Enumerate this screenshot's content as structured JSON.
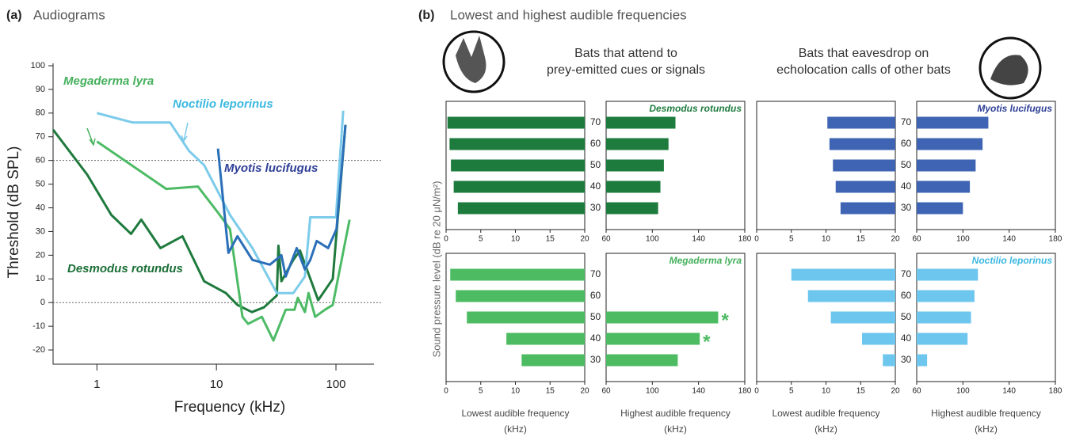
{
  "figure": {
    "panel_a_label": "(a)",
    "panel_b_label": "(b)",
    "panel_b_title": "Lowest and highest audible frequencies",
    "group_titles": [
      [
        "Bats that attend to",
        "prey-emitted  cues or signals"
      ],
      [
        "Bats that eavesdrop on",
        "echolocation calls of other bats"
      ]
    ],
    "y_label_b": "Sound pressure level  (dB re 20 μN/m²)"
  },
  "chart_data": [
    {
      "type": "line",
      "title": "Audiograms",
      "x_label": "Frequency (kHz)",
      "y_label": "Threshold (dB SPL)",
      "log_x": true,
      "xlim": [
        0.43,
        208
      ],
      "xticks": [
        1,
        10,
        100
      ],
      "ylim": [
        -26,
        101
      ],
      "yticks": [
        -20,
        -10,
        0,
        10,
        20,
        30,
        40,
        50,
        60,
        70,
        80,
        90,
        100
      ],
      "reference_lines": [
        60,
        0
      ],
      "series": [
        {
          "name": "Desmodus rotundus",
          "color": "#1f7a3d",
          "label_color": "#1a6e35",
          "x": [
            0.43,
            0.83,
            1.32,
            1.93,
            2.35,
            3.4,
            5.2,
            7.9,
            12,
            15,
            19.8,
            25,
            32,
            33,
            35,
            44,
            50,
            71,
            94,
            120
          ],
          "values": [
            73,
            54,
            37,
            29,
            35,
            23,
            28,
            9,
            4,
            -1,
            -4,
            -2,
            3,
            24,
            9,
            18,
            22,
            1,
            10,
            75
          ]
        },
        {
          "name": "Megaderma lyra",
          "color": "#4dbb66",
          "label_color": "#45b05c",
          "x": [
            1,
            3.8,
            7,
            10.3,
            13,
            16.5,
            18.4,
            24,
            30,
            38,
            45,
            48,
            55,
            59,
            67,
            81,
            94,
            130
          ],
          "values": [
            68,
            48,
            49,
            38,
            31,
            -6,
            -9,
            -6,
            -16,
            -3,
            -3,
            2,
            -4,
            4,
            -6,
            -3,
            -1,
            35
          ]
        },
        {
          "name": "Noctilio leporinus",
          "color": "#7ccbea",
          "label_color": "#3bb8e0",
          "x": [
            1,
            2,
            4.1,
            5.9,
            7.9,
            13,
            20,
            32,
            44,
            55,
            61,
            75,
            100,
            115
          ],
          "values": [
            80,
            76,
            76,
            64,
            58,
            37,
            23,
            4,
            4,
            11,
            36,
            36,
            36,
            81
          ]
        },
        {
          "name": "Myotis lucifugus",
          "color": "#2a6fb8",
          "label_color": "#2e3f96",
          "x": [
            10.3,
            12.6,
            15,
            20,
            28,
            35,
            38,
            47,
            55,
            61,
            69,
            86,
            101,
            120
          ],
          "values": [
            65,
            21,
            28,
            18,
            16,
            20,
            11,
            23,
            14,
            18,
            26,
            23,
            31,
            75
          ]
        }
      ]
    },
    {
      "type": "bar",
      "title": "Desmodus rotundus",
      "color": "#1e7b3e",
      "title_color": "#1e7b3e",
      "categories": [
        "70",
        "60",
        "50",
        "40",
        "30"
      ],
      "lowest": {
        "x_label": [
          "Lowest audible frequency",
          "(kHz)"
        ],
        "xlim": [
          0,
          20
        ],
        "xticks": [
          0,
          5,
          10,
          15,
          20
        ],
        "values": [
          0.2,
          0.5,
          0.7,
          1.1,
          1.7
        ]
      },
      "highest": {
        "x_label": [
          "Highest audible frequency",
          "(kHz)"
        ],
        "xlim": [
          60,
          180
        ],
        "xticks": [
          60,
          100,
          140,
          180
        ],
        "values": [
          120,
          114,
          110,
          107,
          105
        ]
      }
    },
    {
      "type": "bar",
      "title": "Myotis lucifugus",
      "color": "#3f64b3",
      "title_color": "#2e3f96",
      "categories": [
        "70",
        "60",
        "50",
        "40",
        "30"
      ],
      "lowest": {
        "x_label": [
          "Lowest audible frequency",
          "(kHz)"
        ],
        "xlim": [
          0,
          20
        ],
        "xticks": [
          0,
          5,
          10,
          15,
          20
        ],
        "values": [
          10.2,
          10.5,
          11,
          11.4,
          12.1
        ]
      },
      "highest": {
        "x_label": [
          "Highest audible frequency",
          "(kHz)"
        ],
        "xlim": [
          60,
          180
        ],
        "xticks": [
          60,
          100,
          140,
          180
        ],
        "values": [
          122,
          117,
          111,
          106,
          100
        ]
      }
    },
    {
      "type": "bar",
      "title": "Megaderma lyra",
      "color": "#4cbb62",
      "title_color": "#45b05c",
      "categories": [
        "70",
        "60",
        "50",
        "40",
        "30"
      ],
      "lowest": {
        "x_label": [
          "Lowest audible frequency",
          "(kHz)"
        ],
        "xlim": [
          0,
          20
        ],
        "xticks": [
          0,
          5,
          10,
          15,
          20
        ],
        "values": [
          0.6,
          1.4,
          3,
          8.7,
          10.9
        ]
      },
      "highest": {
        "x_label": [
          "Highest audible frequency",
          "(kHz)"
        ],
        "xlim": [
          60,
          180
        ],
        "xticks": [
          60,
          100,
          140,
          180
        ],
        "values": [
          null,
          null,
          157,
          141,
          122
        ],
        "markers": [
          null,
          null,
          "*",
          "*",
          null
        ]
      }
    },
    {
      "type": "bar",
      "title": "Noctilio leporinus",
      "color": "#6cc6ee",
      "title_color": "#3bb8e0",
      "categories": [
        "70",
        "60",
        "50",
        "40",
        "30"
      ],
      "lowest": {
        "x_label": [
          "Lowest audible frequency",
          "(kHz)"
        ],
        "xlim": [
          0,
          20
        ],
        "xticks": [
          0,
          5,
          10,
          15,
          20
        ],
        "values": [
          5,
          7.4,
          10.7,
          15.2,
          18.2
        ]
      },
      "highest": {
        "x_label": [
          "Highest audible frequency",
          "(kHz)"
        ],
        "xlim": [
          60,
          180
        ],
        "xticks": [
          60,
          100,
          140,
          180
        ],
        "values": [
          113,
          110,
          107,
          104,
          69
        ]
      }
    }
  ]
}
